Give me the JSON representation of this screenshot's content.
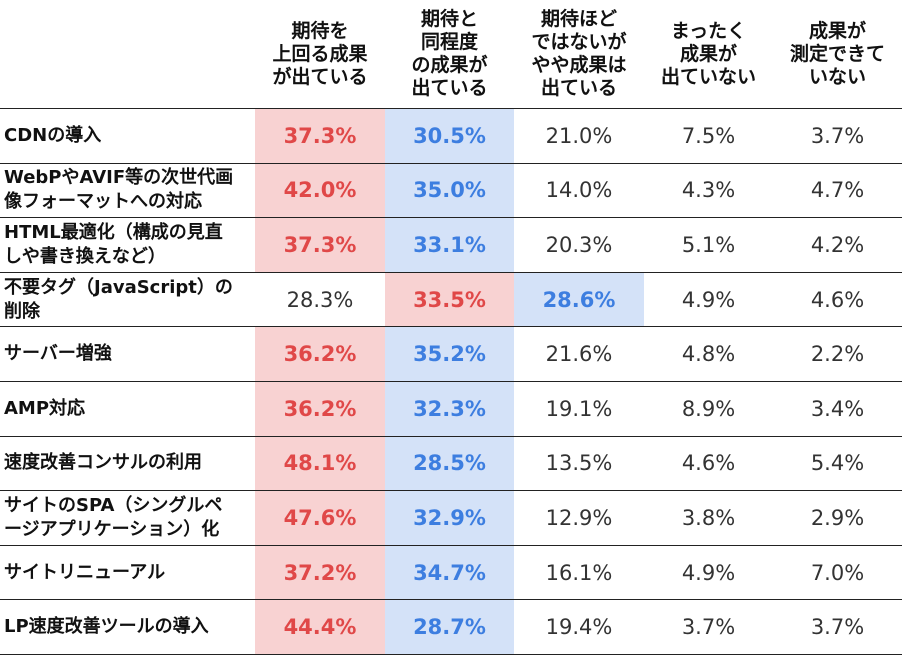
{
  "header": {
    "columns": [
      "",
      "期待を\n上回る成果\nが出ている",
      "期待と\n同程度\nの成果が\n出ている",
      "期待ほど\nではないが\nやや成果は\n出ている",
      "まったく\n成果が\n出ていない",
      "成果が\n測定できて\nいない"
    ]
  },
  "rows": [
    {
      "label": "CDNの導入",
      "values": [
        "37.3%",
        "30.5%",
        "21.0%",
        "7.5%",
        "3.7%"
      ],
      "styles": [
        "red",
        "blue",
        "plain",
        "plain",
        "plain"
      ]
    },
    {
      "label": "WebPやAVIF等の次世代画\n像フォーマットへの対応",
      "values": [
        "42.0%",
        "35.0%",
        "14.0%",
        "4.3%",
        "4.7%"
      ],
      "styles": [
        "red",
        "blue",
        "plain",
        "plain",
        "plain"
      ]
    },
    {
      "label": "HTML最適化（構成の見直\nしや書き換えなど）",
      "values": [
        "37.3%",
        "33.1%",
        "20.3%",
        "5.1%",
        "4.2%"
      ],
      "styles": [
        "red",
        "blue",
        "plain",
        "plain",
        "plain"
      ]
    },
    {
      "label": "不要タグ（JavaScript）の\n削除",
      "values": [
        "28.3%",
        "33.5%",
        "28.6%",
        "4.9%",
        "4.6%"
      ],
      "styles": [
        "plain",
        "red",
        "blue",
        "plain",
        "plain"
      ]
    },
    {
      "label": "サーバー増強",
      "values": [
        "36.2%",
        "35.2%",
        "21.6%",
        "4.8%",
        "2.2%"
      ],
      "styles": [
        "red",
        "blue",
        "plain",
        "plain",
        "plain"
      ]
    },
    {
      "label": "AMP対応",
      "values": [
        "36.2%",
        "32.3%",
        "19.1%",
        "8.9%",
        "3.4%"
      ],
      "styles": [
        "red",
        "blue",
        "plain",
        "plain",
        "plain"
      ]
    },
    {
      "label": "速度改善コンサルの利用",
      "values": [
        "48.1%",
        "28.5%",
        "13.5%",
        "4.6%",
        "5.4%"
      ],
      "styles": [
        "red",
        "blue",
        "plain",
        "plain",
        "plain"
      ]
    },
    {
      "label": "サイトのSPA（シングルペ\nージアプリケーション）化",
      "values": [
        "47.6%",
        "32.9%",
        "12.9%",
        "3.8%",
        "2.9%"
      ],
      "styles": [
        "red",
        "blue",
        "plain",
        "plain",
        "plain"
      ]
    },
    {
      "label": "サイトリニューアル",
      "values": [
        "37.2%",
        "34.7%",
        "16.1%",
        "4.9%",
        "7.0%"
      ],
      "styles": [
        "red",
        "blue",
        "plain",
        "plain",
        "plain"
      ]
    },
    {
      "label": "LP速度改善ツールの導入",
      "values": [
        "44.4%",
        "28.7%",
        "19.4%",
        "3.7%",
        "3.7%"
      ],
      "styles": [
        "red",
        "blue",
        "plain",
        "plain",
        "plain"
      ]
    }
  ],
  "colors": {
    "red_bg": "#f8d2d2",
    "red_text": "#e04848",
    "blue_bg": "#d4e2f8",
    "blue_text": "#3d7ee0"
  }
}
